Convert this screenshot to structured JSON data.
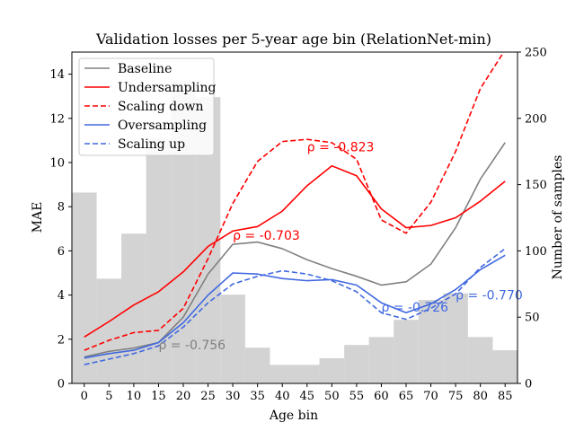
{
  "chart_data": {
    "type": "line",
    "title": "Validation losses per 5-year age bin (RelationNet-min)",
    "xlabel": "Age bin",
    "ylabel": "MAE",
    "y2label": "Number of samples",
    "x": [
      0,
      5,
      10,
      15,
      20,
      25,
      30,
      35,
      40,
      45,
      50,
      55,
      60,
      65,
      70,
      75,
      80,
      85
    ],
    "xlim": [
      -2.5,
      87.5
    ],
    "ylim": [
      0,
      15
    ],
    "y2lim": [
      0,
      250
    ],
    "yticks": [
      0,
      2,
      4,
      6,
      8,
      10,
      12,
      14
    ],
    "y2ticks": [
      0,
      50,
      100,
      150,
      200,
      250
    ],
    "grid": false,
    "legend_position": "top-left",
    "bars": {
      "name": "Number of samples",
      "color": "#d3d3d3",
      "axis": "right",
      "bin_width": 5,
      "values": [
        144,
        79,
        113,
        185,
        228,
        216,
        67,
        27,
        14,
        14,
        19,
        29,
        35,
        48,
        63,
        68,
        35,
        25
      ]
    },
    "series": [
      {
        "name": "Baseline",
        "color": "#808080",
        "dash": false,
        "values": [
          1.2,
          1.45,
          1.6,
          1.85,
          3.0,
          4.95,
          6.3,
          6.4,
          6.1,
          5.6,
          5.2,
          4.85,
          4.45,
          4.6,
          5.4,
          7.05,
          9.25,
          10.9
        ]
      },
      {
        "name": "Undersampling",
        "color": "#ff0000",
        "dash": false,
        "values": [
          2.1,
          2.8,
          3.55,
          4.15,
          5.05,
          6.2,
          6.9,
          7.1,
          7.8,
          8.95,
          9.85,
          9.4,
          7.9,
          7.05,
          7.15,
          7.5,
          8.25,
          9.15
        ]
      },
      {
        "name": "Scaling down",
        "color": "#ff0000",
        "dash": true,
        "values": [
          1.5,
          1.95,
          2.3,
          2.4,
          3.4,
          5.65,
          8.15,
          10.05,
          10.95,
          11.05,
          10.9,
          10.15,
          7.4,
          6.8,
          8.2,
          10.5,
          13.35,
          15.1
        ]
      },
      {
        "name": "Oversampling",
        "color": "#4169e1",
        "dash": false,
        "values": [
          1.15,
          1.35,
          1.5,
          1.85,
          2.75,
          4.0,
          5.0,
          4.95,
          4.75,
          4.65,
          4.7,
          4.45,
          3.65,
          3.2,
          3.6,
          4.25,
          5.15,
          5.8
        ]
      },
      {
        "name": "Scaling up",
        "color": "#4169e1",
        "dash": true,
        "values": [
          0.85,
          1.1,
          1.35,
          1.7,
          2.55,
          3.65,
          4.5,
          4.85,
          5.1,
          4.95,
          4.65,
          4.15,
          3.2,
          2.9,
          3.4,
          4.05,
          5.25,
          6.1
        ]
      }
    ],
    "annotations": [
      {
        "text": "ρ = -0.756",
        "x": 15,
        "y": 1.55,
        "color": "#808080"
      },
      {
        "text": "ρ = -0.703",
        "x": 30,
        "y": 6.5,
        "color": "#ff0000"
      },
      {
        "text": "ρ = -0.823",
        "x": 45,
        "y": 10.5,
        "color": "#ff0000"
      },
      {
        "text": "ρ = -0.726",
        "x": 60,
        "y": 3.25,
        "color": "#4169e1"
      },
      {
        "text": "ρ = -0.770",
        "x": 75,
        "y": 3.8,
        "color": "#4169e1"
      }
    ]
  }
}
